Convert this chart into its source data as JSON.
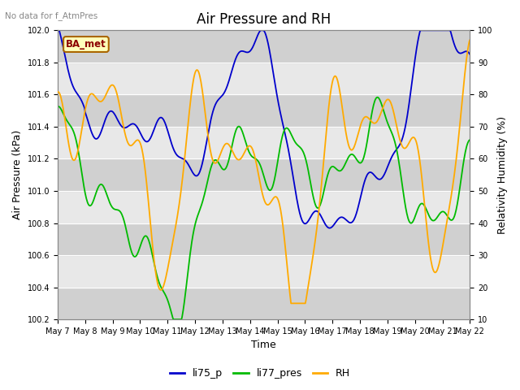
{
  "title": "Air Pressure and RH",
  "top_left_text": "No data for f_AtmPres",
  "box_label": "BA_met",
  "xlabel": "Time",
  "ylabel_left": "Air Pressure (kPa)",
  "ylabel_right": "Relativity Humidity (%)",
  "ylim_left": [
    100.2,
    102.0
  ],
  "ylim_right": [
    10,
    100
  ],
  "yticks_left": [
    100.2,
    100.4,
    100.6,
    100.8,
    101.0,
    101.2,
    101.4,
    101.6,
    101.8,
    102.0
  ],
  "yticks_right": [
    10,
    20,
    30,
    40,
    50,
    60,
    70,
    80,
    90,
    100
  ],
  "line_colors": {
    "li75_p": "#0000cc",
    "li77_pres": "#00bb00",
    "RH": "#ffaa00"
  },
  "legend_labels": [
    "li75_p",
    "li77_pres",
    "RH"
  ],
  "background_color": "#ffffff",
  "plot_bg_color": "#e8e8e8",
  "grid_color": "#ffffff",
  "band_light": "#e8e8e8",
  "band_dark": "#d0d0d0",
  "title_fontsize": 12,
  "label_fontsize": 9,
  "tick_fontsize": 7,
  "x_ticks": [
    7,
    8,
    9,
    10,
    11,
    12,
    13,
    14,
    15,
    16,
    17,
    18,
    19,
    20,
    21,
    22
  ]
}
